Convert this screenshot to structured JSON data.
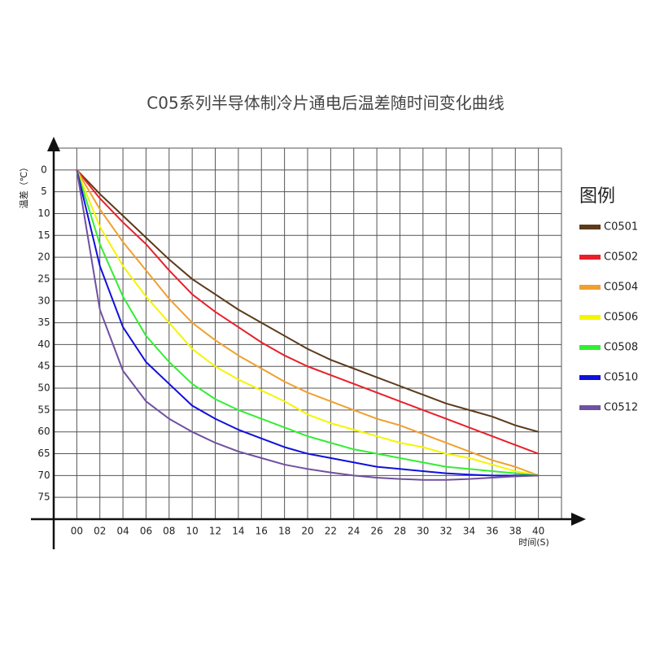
{
  "chart_data": {
    "type": "line",
    "title": "C05系列半导体制冷片通电后温差随时间变化曲线",
    "y_label": "温差（℃）",
    "x_label": "时间(S)",
    "legend_title": "图例",
    "x": [
      0,
      2,
      4,
      6,
      8,
      10,
      12,
      14,
      16,
      18,
      20,
      22,
      24,
      26,
      28,
      30,
      32,
      34,
      36,
      38,
      40
    ],
    "xlim": [
      -2,
      42
    ],
    "ylim": [
      -5,
      80
    ],
    "y_inverted": true,
    "grid": true,
    "xticks": [
      {
        "value": 0,
        "label": "00"
      },
      {
        "value": 2,
        "label": "02"
      },
      {
        "value": 4,
        "label": "04"
      },
      {
        "value": 6,
        "label": "06"
      },
      {
        "value": 8,
        "label": "08"
      },
      10,
      12,
      14,
      16,
      18,
      20,
      22,
      24,
      26,
      28,
      30,
      32,
      34,
      36,
      38,
      40
    ],
    "yticks": [
      0,
      5,
      10,
      15,
      20,
      25,
      30,
      35,
      40,
      45,
      50,
      55,
      60,
      65,
      70,
      75
    ],
    "series": [
      {
        "name": "C0501",
        "color": "#5c3a1a",
        "values": [
          0,
          5.5,
          10.5,
          15.5,
          20.5,
          25,
          28.5,
          32,
          35,
          38,
          41,
          43.5,
          45.5,
          47.5,
          49.5,
          51.5,
          53.5,
          55,
          56.5,
          58.5,
          60
        ]
      },
      {
        "name": "C0502",
        "color": "#e8202a",
        "values": [
          0,
          6.5,
          12,
          17,
          23,
          28.5,
          32.5,
          36,
          39.5,
          42.5,
          45,
          47,
          49,
          51,
          53,
          55,
          57,
          59,
          61,
          63,
          65
        ]
      },
      {
        "name": "C0504",
        "color": "#f0a030",
        "values": [
          0,
          9,
          16.5,
          23,
          29.5,
          35,
          39,
          42.5,
          45.5,
          48.5,
          51,
          53,
          55,
          57,
          58.5,
          60.5,
          62.5,
          64.5,
          66.5,
          68,
          70
        ]
      },
      {
        "name": "C0506",
        "color": "#f5f500",
        "values": [
          0,
          13,
          22,
          29,
          35,
          41,
          45,
          48,
          50.5,
          53,
          56,
          58,
          59.5,
          61,
          62.5,
          63.5,
          65,
          66,
          67.5,
          69,
          70
        ]
      },
      {
        "name": "C0508",
        "color": "#33ee33",
        "values": [
          0,
          17,
          29,
          38,
          44,
          49,
          52.5,
          55,
          57,
          59,
          61,
          62.5,
          64,
          65,
          66,
          67,
          68,
          68.5,
          69,
          69.5,
          70
        ]
      },
      {
        "name": "C0510",
        "color": "#1010dd",
        "values": [
          0,
          22,
          36,
          44,
          49,
          54,
          57,
          59.5,
          61.5,
          63.5,
          65,
          66,
          67,
          68,
          68.5,
          69,
          69.5,
          69.8,
          70,
          70,
          70
        ]
      },
      {
        "name": "C0512",
        "color": "#7050a0",
        "values": [
          0,
          32,
          46,
          53,
          57,
          60,
          62.5,
          64.5,
          66,
          67.5,
          68.5,
          69.3,
          70,
          70.5,
          70.8,
          71,
          71,
          70.8,
          70.5,
          70.2,
          70
        ]
      }
    ]
  }
}
